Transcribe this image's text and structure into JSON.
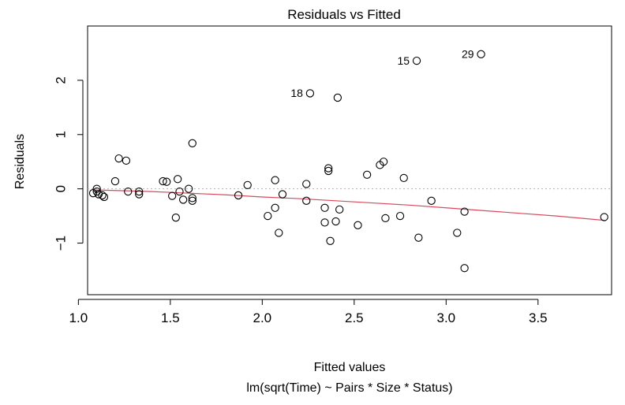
{
  "chart_data": {
    "type": "scatter",
    "title": "Residuals vs Fitted",
    "xlabel": "Fitted values",
    "subtitle": "lm(sqrt(Time) ~ Pairs * Size * Status)",
    "ylabel": "Residuals",
    "xlim": [
      1.05,
      3.9
    ],
    "ylim": [
      -1.95,
      3.0
    ],
    "x_ticks": [
      1.0,
      1.5,
      2.0,
      2.5,
      3.0,
      3.5
    ],
    "x_tick_labels": [
      "1.0",
      "1.5",
      "2.0",
      "2.5",
      "3.0",
      "3.5"
    ],
    "y_ticks": [
      -1,
      0,
      1,
      2
    ],
    "y_tick_labels": [
      "−1",
      "0",
      "1",
      "2"
    ],
    "reference_line": 0,
    "grid": false,
    "points": [
      {
        "x": 1.08,
        "y": -0.08
      },
      {
        "x": 1.1,
        "y": 0.0
      },
      {
        "x": 1.1,
        "y": -0.05
      },
      {
        "x": 1.11,
        "y": -0.1
      },
      {
        "x": 1.13,
        "y": -0.12
      },
      {
        "x": 1.14,
        "y": -0.15
      },
      {
        "x": 1.2,
        "y": 0.14
      },
      {
        "x": 1.22,
        "y": 0.56
      },
      {
        "x": 1.26,
        "y": 0.52
      },
      {
        "x": 1.27,
        "y": -0.05
      },
      {
        "x": 1.33,
        "y": -0.1
      },
      {
        "x": 1.33,
        "y": -0.05
      },
      {
        "x": 1.46,
        "y": 0.14
      },
      {
        "x": 1.48,
        "y": 0.13
      },
      {
        "x": 1.51,
        "y": -0.13
      },
      {
        "x": 1.53,
        "y": -0.53
      },
      {
        "x": 1.54,
        "y": 0.18
      },
      {
        "x": 1.55,
        "y": -0.05
      },
      {
        "x": 1.57,
        "y": -0.2
      },
      {
        "x": 1.6,
        "y": 0.0
      },
      {
        "x": 1.62,
        "y": -0.22
      },
      {
        "x": 1.62,
        "y": -0.17
      },
      {
        "x": 1.62,
        "y": 0.84
      },
      {
        "x": 1.87,
        "y": -0.12
      },
      {
        "x": 1.92,
        "y": 0.07
      },
      {
        "x": 2.03,
        "y": -0.5
      },
      {
        "x": 2.07,
        "y": 0.16
      },
      {
        "x": 2.07,
        "y": -0.35
      },
      {
        "x": 2.09,
        "y": -0.81
      },
      {
        "x": 2.11,
        "y": -0.1
      },
      {
        "x": 2.24,
        "y": 0.09
      },
      {
        "x": 2.24,
        "y": -0.22
      },
      {
        "x": 2.26,
        "y": 1.76
      },
      {
        "x": 2.34,
        "y": -0.35
      },
      {
        "x": 2.34,
        "y": -0.62
      },
      {
        "x": 2.36,
        "y": 0.38
      },
      {
        "x": 2.36,
        "y": 0.33
      },
      {
        "x": 2.37,
        "y": -0.96
      },
      {
        "x": 2.4,
        "y": -0.6
      },
      {
        "x": 2.41,
        "y": 1.68
      },
      {
        "x": 2.42,
        "y": -0.38
      },
      {
        "x": 2.52,
        "y": -0.67
      },
      {
        "x": 2.57,
        "y": 0.26
      },
      {
        "x": 2.64,
        "y": 0.44
      },
      {
        "x": 2.66,
        "y": 0.5
      },
      {
        "x": 2.67,
        "y": -0.54
      },
      {
        "x": 2.75,
        "y": -0.5
      },
      {
        "x": 2.77,
        "y": 0.2
      },
      {
        "x": 2.84,
        "y": 2.36
      },
      {
        "x": 2.85,
        "y": -0.9
      },
      {
        "x": 2.92,
        "y": -0.22
      },
      {
        "x": 3.06,
        "y": -0.81
      },
      {
        "x": 3.1,
        "y": -0.42
      },
      {
        "x": 3.1,
        "y": -1.46
      },
      {
        "x": 3.19,
        "y": 2.48
      },
      {
        "x": 3.86,
        "y": -0.52
      }
    ],
    "labeled_points": [
      {
        "label": "29",
        "x": 3.19,
        "y": 2.48
      },
      {
        "label": "15",
        "x": 2.84,
        "y": 2.36
      },
      {
        "label": "18",
        "x": 2.26,
        "y": 1.76
      }
    ],
    "smooth_line": {
      "color": "#d84a5e",
      "x": [
        1.08,
        1.2,
        1.4,
        1.6,
        1.8,
        2.0,
        2.2,
        2.4,
        2.6,
        2.8,
        3.0,
        3.2,
        3.4,
        3.6,
        3.86
      ],
      "y": [
        -0.02,
        -0.03,
        -0.05,
        -0.08,
        -0.11,
        -0.15,
        -0.18,
        -0.22,
        -0.26,
        -0.3,
        -0.35,
        -0.4,
        -0.45,
        -0.5,
        -0.58
      ]
    },
    "colors": {
      "points": "#000000",
      "reference_line": "#b3b3b3",
      "frame": "#000000"
    }
  }
}
